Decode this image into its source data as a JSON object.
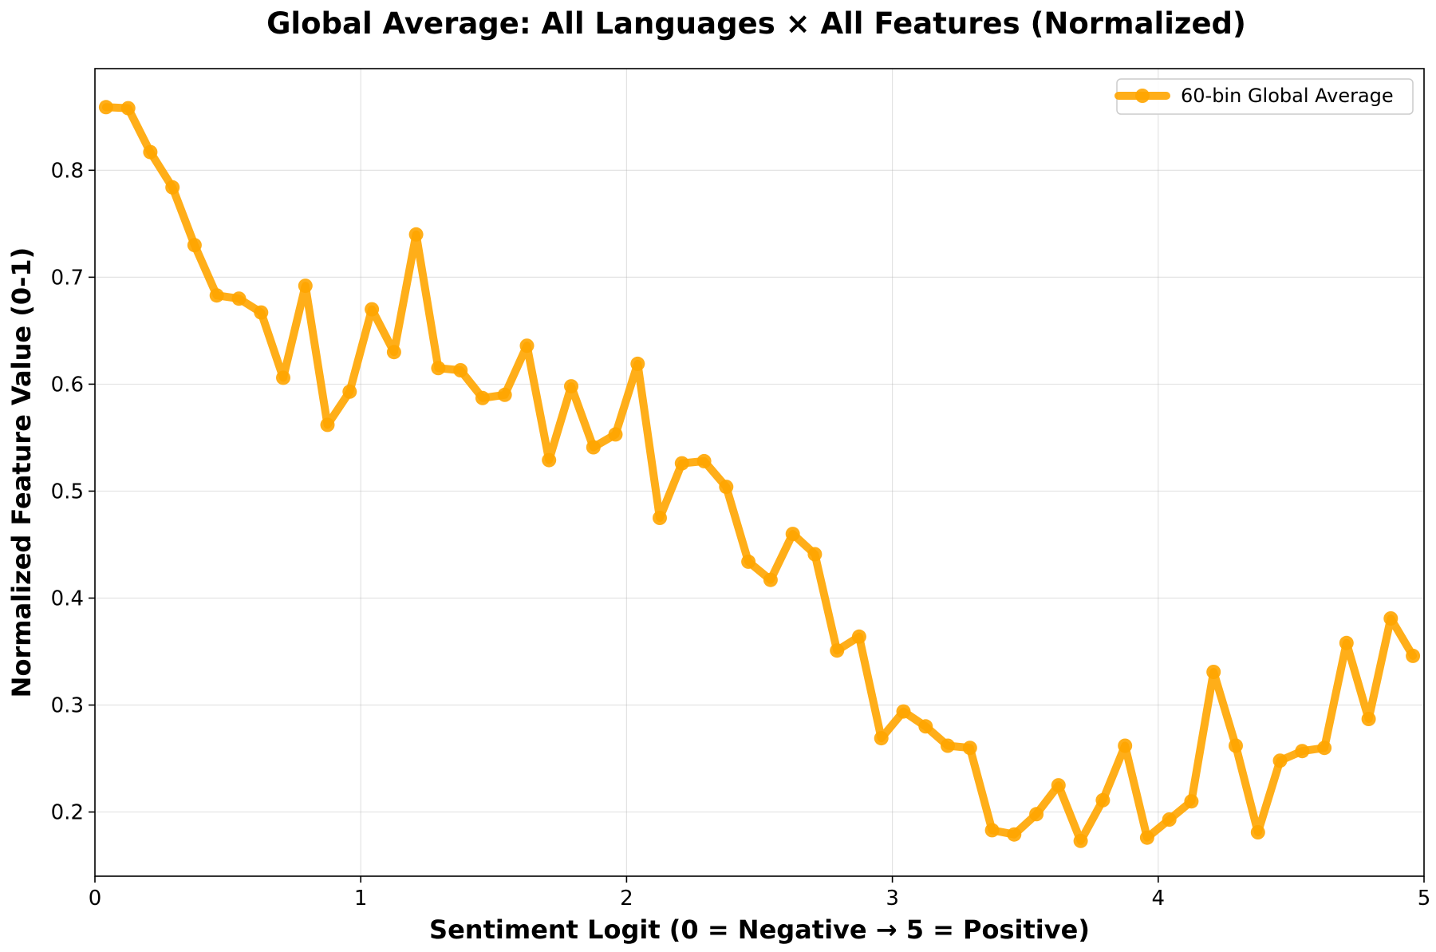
{
  "chart_data": {
    "type": "line",
    "title": "Global Average: All Languages × All Features (Normalized)",
    "xlabel": "Sentiment Logit (0 = Negative → 5 = Positive)",
    "ylabel": "Normalized Feature Value (0-1)",
    "xlim": [
      0,
      5
    ],
    "ylim": [
      0.14,
      0.895
    ],
    "xticks": [
      0,
      1,
      2,
      3,
      4,
      5
    ],
    "xtick_labels": [
      "0",
      "1",
      "2",
      "3",
      "4",
      "5"
    ],
    "yticks": [
      0.2,
      0.3,
      0.4,
      0.5,
      0.6,
      0.7,
      0.8
    ],
    "ytick_labels": [
      "0.2",
      "0.3",
      "0.4",
      "0.5",
      "0.6",
      "0.7",
      "0.8"
    ],
    "grid": true,
    "legend_position": "top-right",
    "series": [
      {
        "name": "60-bin Global Average",
        "color": "#FFA500",
        "marker": "circle",
        "x": [
          0.0417,
          0.125,
          0.2083,
          0.2917,
          0.375,
          0.4583,
          0.5417,
          0.625,
          0.7083,
          0.7917,
          0.875,
          0.9583,
          1.0417,
          1.125,
          1.2083,
          1.2917,
          1.375,
          1.4583,
          1.5417,
          1.625,
          1.7083,
          1.7917,
          1.875,
          1.9583,
          2.0417,
          2.125,
          2.2083,
          2.2917,
          2.375,
          2.4583,
          2.5417,
          2.625,
          2.7083,
          2.7917,
          2.875,
          2.9583,
          3.0417,
          3.125,
          3.2083,
          3.2917,
          3.375,
          3.4583,
          3.5417,
          3.625,
          3.7083,
          3.7917,
          3.875,
          3.9583,
          4.0417,
          4.125,
          4.2083,
          4.2917,
          4.375,
          4.4583,
          4.5417,
          4.625,
          4.7083,
          4.7917,
          4.875,
          4.9583
        ],
        "y": [
          0.859,
          0.858,
          0.817,
          0.784,
          0.73,
          0.683,
          0.68,
          0.667,
          0.606,
          0.692,
          0.562,
          0.593,
          0.67,
          0.63,
          0.74,
          0.615,
          0.613,
          0.587,
          0.59,
          0.636,
          0.529,
          0.598,
          0.541,
          0.553,
          0.619,
          0.475,
          0.526,
          0.528,
          0.504,
          0.434,
          0.417,
          0.46,
          0.441,
          0.351,
          0.364,
          0.269,
          0.294,
          0.28,
          0.262,
          0.26,
          0.183,
          0.179,
          0.198,
          0.225,
          0.173,
          0.211,
          0.262,
          0.176,
          0.193,
          0.21,
          0.331,
          0.262,
          0.181,
          0.248,
          0.257,
          0.26,
          0.358,
          0.287,
          0.381,
          0.346
        ]
      }
    ]
  }
}
